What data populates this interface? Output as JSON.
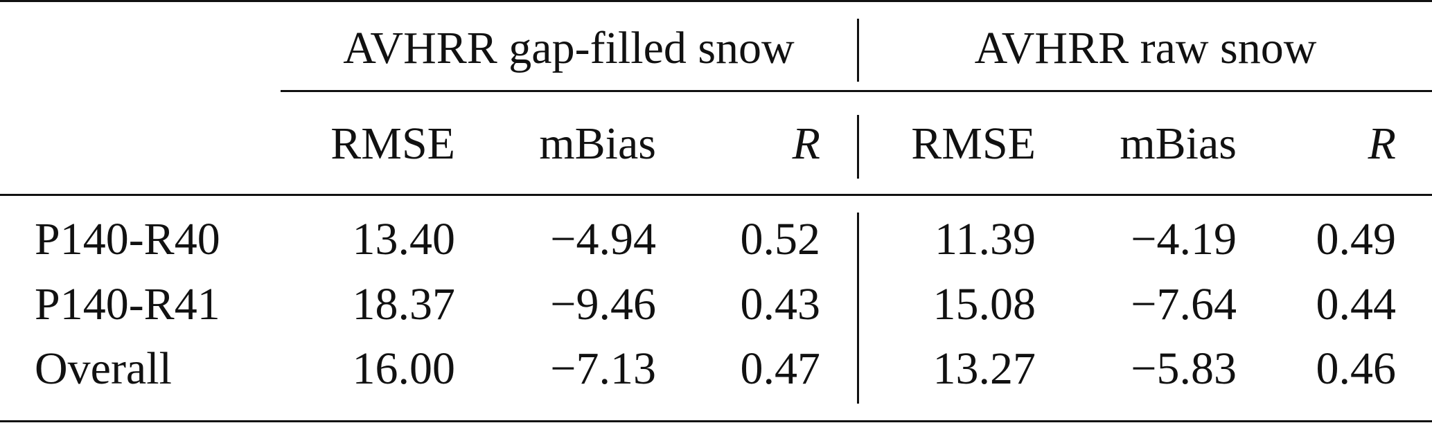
{
  "table": {
    "group_headers": [
      "AVHRR gap-filled snow",
      "AVHRR raw snow"
    ],
    "column_headers": [
      "RMSE",
      "mBias",
      "R",
      "RMSE",
      "mBias",
      "R"
    ],
    "rows": [
      {
        "label": "P140-R40",
        "values": [
          "13.40",
          "−4.94",
          "0.52",
          "11.39",
          "−4.19",
          "0.49"
        ]
      },
      {
        "label": "P140-R41",
        "values": [
          "18.37",
          "−9.46",
          "0.43",
          "15.08",
          "−7.64",
          "0.44"
        ]
      },
      {
        "label": "Overall",
        "values": [
          "16.00",
          "−7.13",
          "0.47",
          "13.27",
          "−5.83",
          "0.46"
        ]
      }
    ]
  }
}
